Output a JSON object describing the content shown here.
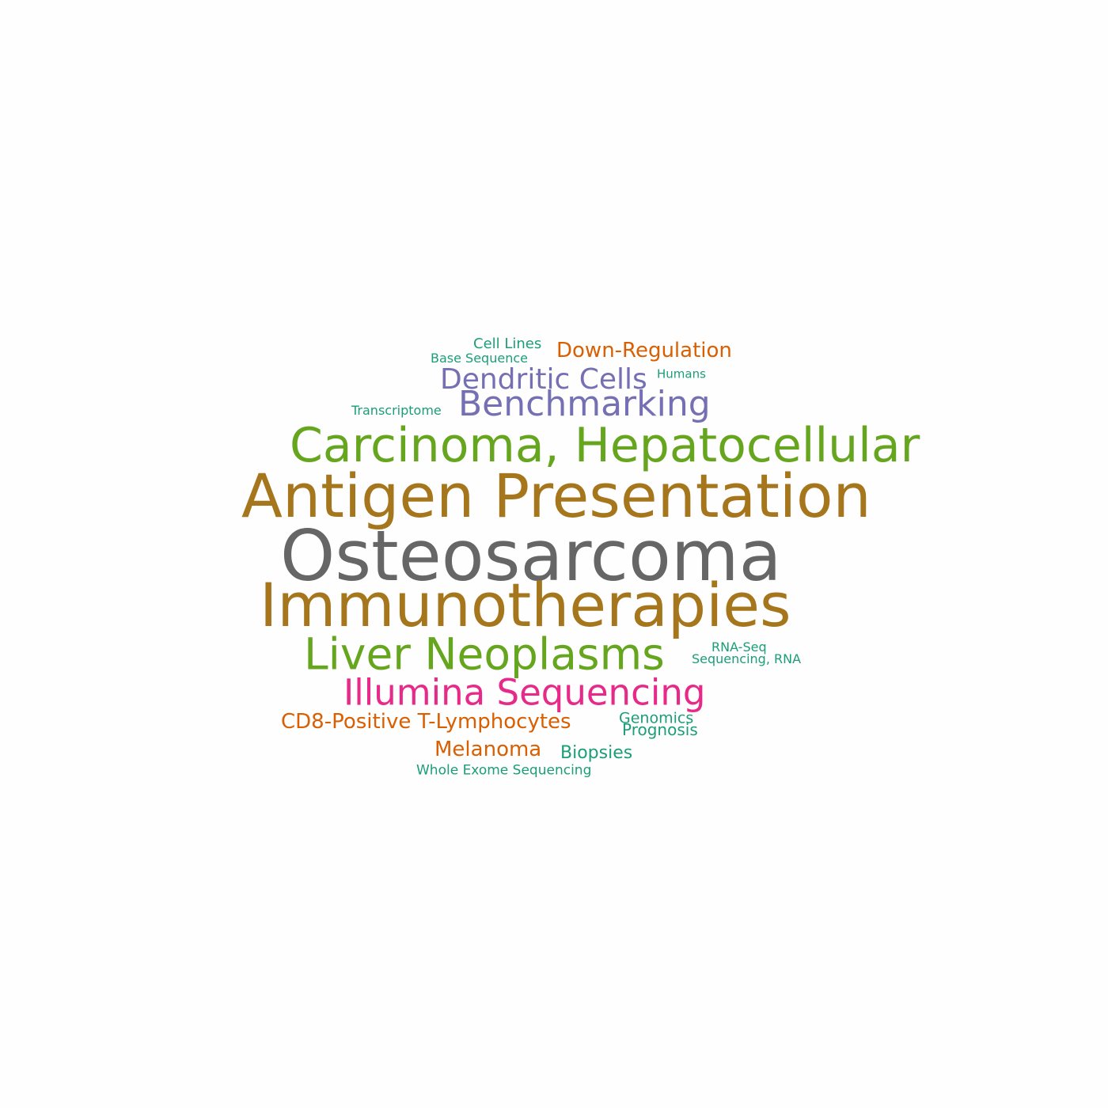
{
  "colors": {
    "background": "#fefefe",
    "gray": "#666666",
    "gold": "#a6761d",
    "green": "#66a61e",
    "purple": "#7570b3",
    "magenta": "#e7298a",
    "orange": "#d95f02",
    "teal": "#1b9e77"
  },
  "words": [
    {
      "id": "osteosarcoma",
      "text": "Osteosarcoma",
      "color": "#666666"
    },
    {
      "id": "antigen-presentation",
      "text": "Antigen Presentation",
      "color": "#a6761d"
    },
    {
      "id": "immunotherapies",
      "text": "Immunotherapies",
      "color": "#a6761d"
    },
    {
      "id": "carcinoma-hepatocellular",
      "text": "Carcinoma, Hepatocellular",
      "color": "#66a61e"
    },
    {
      "id": "liver-neoplasms",
      "text": "Liver Neoplasms",
      "color": "#66a61e"
    },
    {
      "id": "illumina-sequencing",
      "text": "Illumina Sequencing",
      "color": "#e7298a"
    },
    {
      "id": "benchmarking",
      "text": "Benchmarking",
      "color": "#7570b3"
    },
    {
      "id": "dendritic-cells",
      "text": "Dendritic Cells",
      "color": "#7570b3"
    },
    {
      "id": "down-regulation",
      "text": "Down-Regulation",
      "color": "#d95f02"
    },
    {
      "id": "cd8-positive-t-lymphocytes",
      "text": "CD8-Positive T-Lymphocytes",
      "color": "#d95f02"
    },
    {
      "id": "melanoma",
      "text": "Melanoma",
      "color": "#d95f02"
    },
    {
      "id": "biopsies",
      "text": "Biopsies",
      "color": "#1b9e77"
    },
    {
      "id": "genomics",
      "text": "Genomics",
      "color": "#1b9e77"
    },
    {
      "id": "prognosis",
      "text": "Prognosis",
      "color": "#1b9e77"
    },
    {
      "id": "cell-lines",
      "text": "Cell Lines",
      "color": "#1b9e77"
    },
    {
      "id": "base-sequence",
      "text": "Base Sequence",
      "color": "#1b9e77"
    },
    {
      "id": "humans",
      "text": "Humans",
      "color": "#1b9e77"
    },
    {
      "id": "transcriptome",
      "text": "Transcriptome",
      "color": "#1b9e77"
    },
    {
      "id": "rna-seq",
      "text": "RNA-Seq",
      "color": "#1b9e77"
    },
    {
      "id": "sequencing-rna",
      "text": "Sequencing, RNA",
      "color": "#1b9e77"
    },
    {
      "id": "whole-exome-sequencing",
      "text": "Whole Exome Sequencing",
      "color": "#1b9e77"
    }
  ]
}
